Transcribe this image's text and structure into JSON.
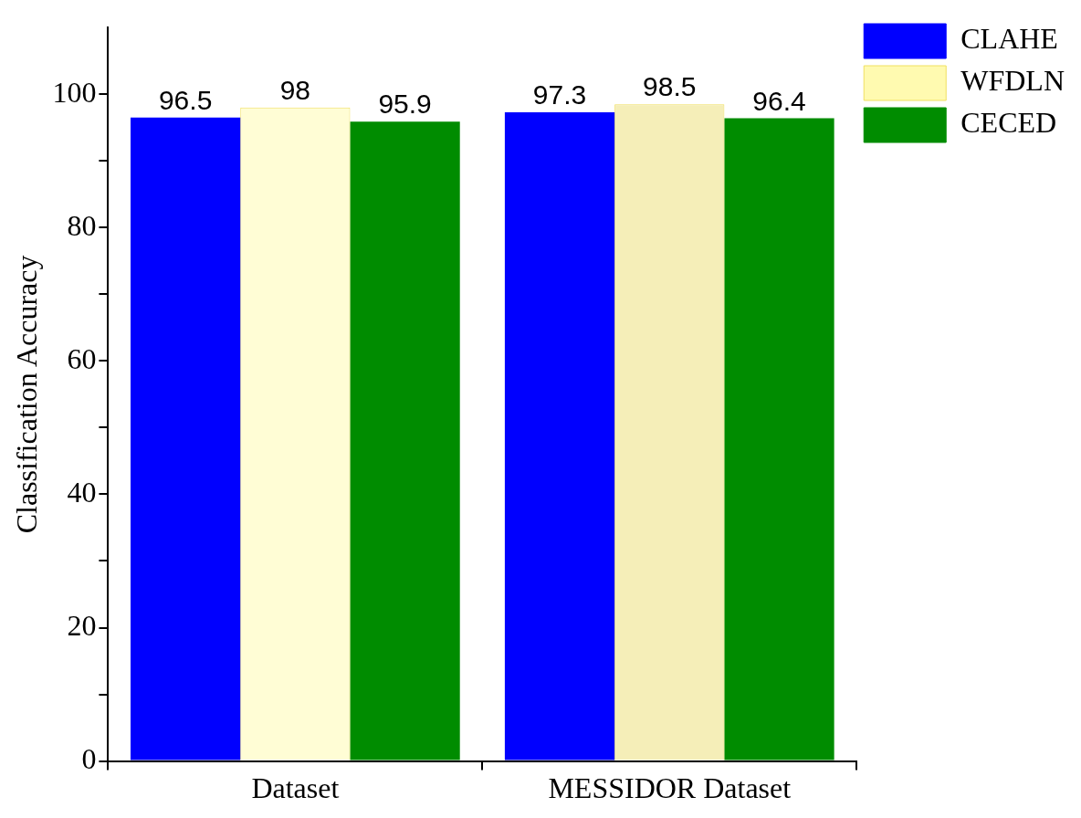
{
  "chart_data": {
    "type": "bar",
    "categories": [
      "Dataset",
      "MESSIDOR Dataset"
    ],
    "ylabel": "Classification Accuracy",
    "series": [
      {
        "name": "CLAHE",
        "color": "#0000ff",
        "values": [
          96.5,
          97.3
        ]
      },
      {
        "name": "WFDLN",
        "color": "#fffab0",
        "colors": [
          "#fffdd5",
          "#f5eeb8"
        ],
        "values": [
          98,
          98.5
        ]
      },
      {
        "name": "CECED",
        "color": "#008c00",
        "values": [
          95.9,
          96.4
        ]
      }
    ],
    "ylim": [
      0,
      110
    ],
    "yticks": [
      0,
      {
        "value": 10,
        "label": null
      },
      20,
      {
        "value": 30,
        "label": null
      },
      40,
      {
        "value": 50,
        "label": null
      },
      60,
      {
        "value": 70,
        "label": null
      },
      80,
      {
        "value": 90,
        "label": null
      },
      100
    ],
    "grid": false,
    "legend": "top right",
    "data_labels": true
  }
}
